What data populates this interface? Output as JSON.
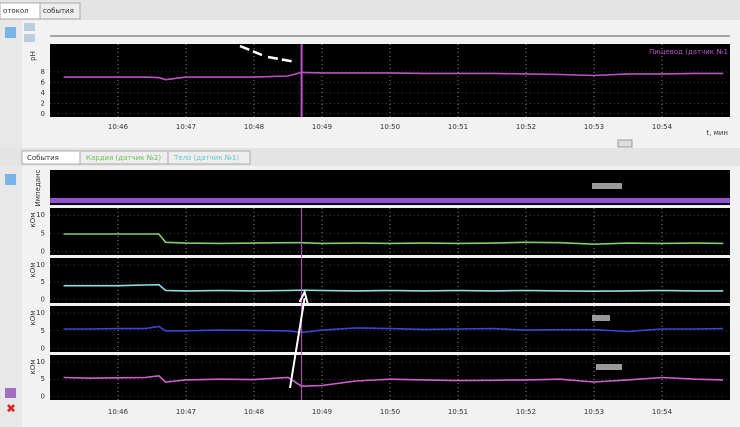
{
  "ui": {
    "top_tabs": [
      "отокол",
      "события"
    ],
    "middle_tabs": [
      "События",
      "Кардия (датчик №2)",
      "Тело (датчик №1)"
    ],
    "impedance_label": "Импеданс",
    "time_unit": "t, мин"
  },
  "chart_data": [
    {
      "type": "line",
      "y_label": "pH",
      "grid": true,
      "cursor": 648.7,
      "x": [
        645.2,
        645.6,
        646.0,
        646.4,
        646.6,
        646.7,
        647.0,
        647.5,
        648.0,
        648.5,
        648.7,
        649.0,
        649.5,
        650.0,
        650.5,
        651.0,
        651.5,
        652.0,
        652.5,
        653.0,
        653.5,
        654.0,
        654.5,
        654.9
      ],
      "xlim": [
        645,
        655
      ],
      "xticks": [
        {
          "value": 646,
          "label": "10:46"
        },
        {
          "value": 647,
          "label": "10:47"
        },
        {
          "value": 648,
          "label": "10:48"
        },
        {
          "value": 649,
          "label": "10:49"
        },
        {
          "value": 650,
          "label": "10:50"
        },
        {
          "value": 651,
          "label": "10:51"
        },
        {
          "value": 652,
          "label": "10:52"
        },
        {
          "value": 653,
          "label": "10:53"
        },
        {
          "value": 654,
          "label": "10:54"
        }
      ],
      "ylim": [
        -0.6,
        13.3
      ],
      "yticks": [
        0,
        2,
        4,
        6,
        8
      ],
      "series": [
        {
          "name": "Пищевод (датчик №1",
          "color": "#c050c8",
          "values": [
            7,
            7,
            7,
            7,
            6.9,
            6.5,
            7,
            7,
            7,
            7.2,
            7.9,
            7.8,
            7.8,
            7.8,
            7.7,
            7.7,
            7.7,
            7.6,
            7.5,
            7.3,
            7.6,
            7.6,
            7.7,
            7.7
          ]
        }
      ]
    },
    {
      "type": "line",
      "grid": true,
      "x": [
        645.2,
        645.6,
        646.0,
        646.4,
        646.6,
        646.7,
        647.0,
        647.5,
        648.0,
        648.5,
        648.7,
        649.0,
        649.5,
        650.0,
        650.5,
        651.0,
        651.5,
        652.0,
        652.5,
        653.0,
        653.5,
        654.0,
        654.5,
        654.9
      ],
      "xlim": [
        645,
        655
      ],
      "xticks": [
        {
          "value": 646,
          "label": "10:46"
        },
        {
          "value": 647,
          "label": "10:47"
        },
        {
          "value": 648,
          "label": "10:48"
        },
        {
          "value": 649,
          "label": "10:49"
        },
        {
          "value": 650,
          "label": "10:50"
        },
        {
          "value": 651,
          "label": "10:51"
        },
        {
          "value": 652,
          "label": "10:52"
        },
        {
          "value": 653,
          "label": "10:53"
        },
        {
          "value": 654,
          "label": "10:54"
        }
      ],
      "panels": [
        {
          "y_label": "кОм",
          "ylim": [
            -1,
            12
          ],
          "yticks": [
            0,
            5,
            10
          ],
          "series": [
            {
              "color": "#7ed06a",
              "values": [
                4.8,
                4.8,
                4.8,
                4.8,
                4.8,
                2.5,
                2.3,
                2.2,
                2.3,
                2.4,
                2.4,
                2.2,
                2.3,
                2.2,
                2.3,
                2.2,
                2.3,
                2.5,
                2.4,
                2.0,
                2.3,
                2.2,
                2.3,
                2.2
              ]
            }
          ]
        },
        {
          "y_label": "кОм",
          "ylim": [
            -1,
            12
          ],
          "yticks": [
            0,
            5,
            10
          ],
          "series": [
            {
              "color": "#8fe0e0",
              "values": [
                4,
                4,
                4,
                4.2,
                4.3,
                2.6,
                2.5,
                2.6,
                2.5,
                2.6,
                2.7,
                2.6,
                2.5,
                2.6,
                2.5,
                2.6,
                2.5,
                2.6,
                2.5,
                2.4,
                2.5,
                2.6,
                2.5,
                2.5
              ]
            }
          ]
        },
        {
          "y_label": "кОм",
          "ylim": [
            -1,
            12
          ],
          "yticks": [
            0,
            5,
            10
          ],
          "series": [
            {
              "color": "#3a46d8",
              "values": [
                5.5,
                5.5,
                5.6,
                5.6,
                6.2,
                5,
                5,
                5.2,
                5.1,
                5,
                4.5,
                5.2,
                5.8,
                5.6,
                5.4,
                5.5,
                5.6,
                5.2,
                5.3,
                5.3,
                4.8,
                5.5,
                5.5,
                5.6
              ]
            }
          ]
        },
        {
          "y_label": "кОм",
          "ylim": [
            -1,
            12
          ],
          "yticks": [
            0,
            5,
            10
          ],
          "series": [
            {
              "color": "#d060d0",
              "values": [
                5.5,
                5.3,
                5.4,
                5.5,
                6,
                4.2,
                4.8,
                5,
                4.9,
                5.5,
                3,
                3.2,
                4.5,
                5,
                4.8,
                4.6,
                4.7,
                4.8,
                5,
                4.2,
                4.8,
                5.5,
                5,
                4.8
              ]
            }
          ]
        }
      ]
    }
  ]
}
